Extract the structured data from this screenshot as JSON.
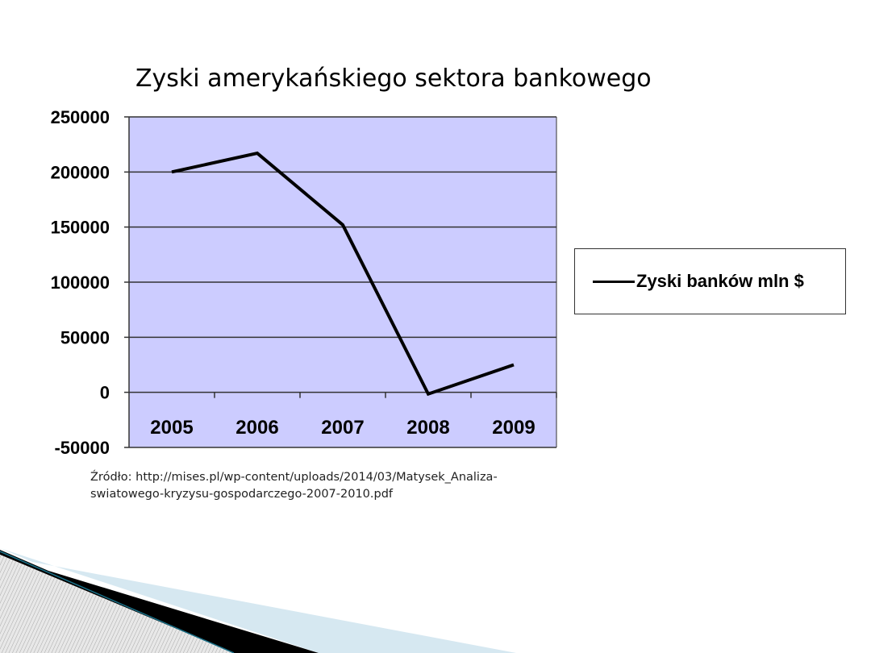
{
  "slide": {
    "title": "Zyski amerykańskiego sektora bankowego",
    "source_line1": "Źródło: http://mises.pl/wp-content/uploads/2014/03/Matysek_Analiza-",
    "source_line2": "swiatowego-kryzysu-gospodarczego-2007-2010.pdf"
  },
  "chart_data": {
    "type": "line",
    "title": "Zyski amerykańskiego sektora bankowego",
    "categories": [
      "2005",
      "2006",
      "2007",
      "2008",
      "2009"
    ],
    "series": [
      {
        "name": "Zyski banków mln $",
        "values": [
          200000,
          217000,
          152000,
          -1500,
          25000
        ],
        "color": "#000000"
      }
    ],
    "ylim": [
      -50000,
      250000
    ],
    "yticks": [
      "250000",
      "200000",
      "150000",
      "100000",
      "50000",
      "0",
      "-50000"
    ],
    "grid": true,
    "legend": "right",
    "plot_background": "#ccccff"
  }
}
